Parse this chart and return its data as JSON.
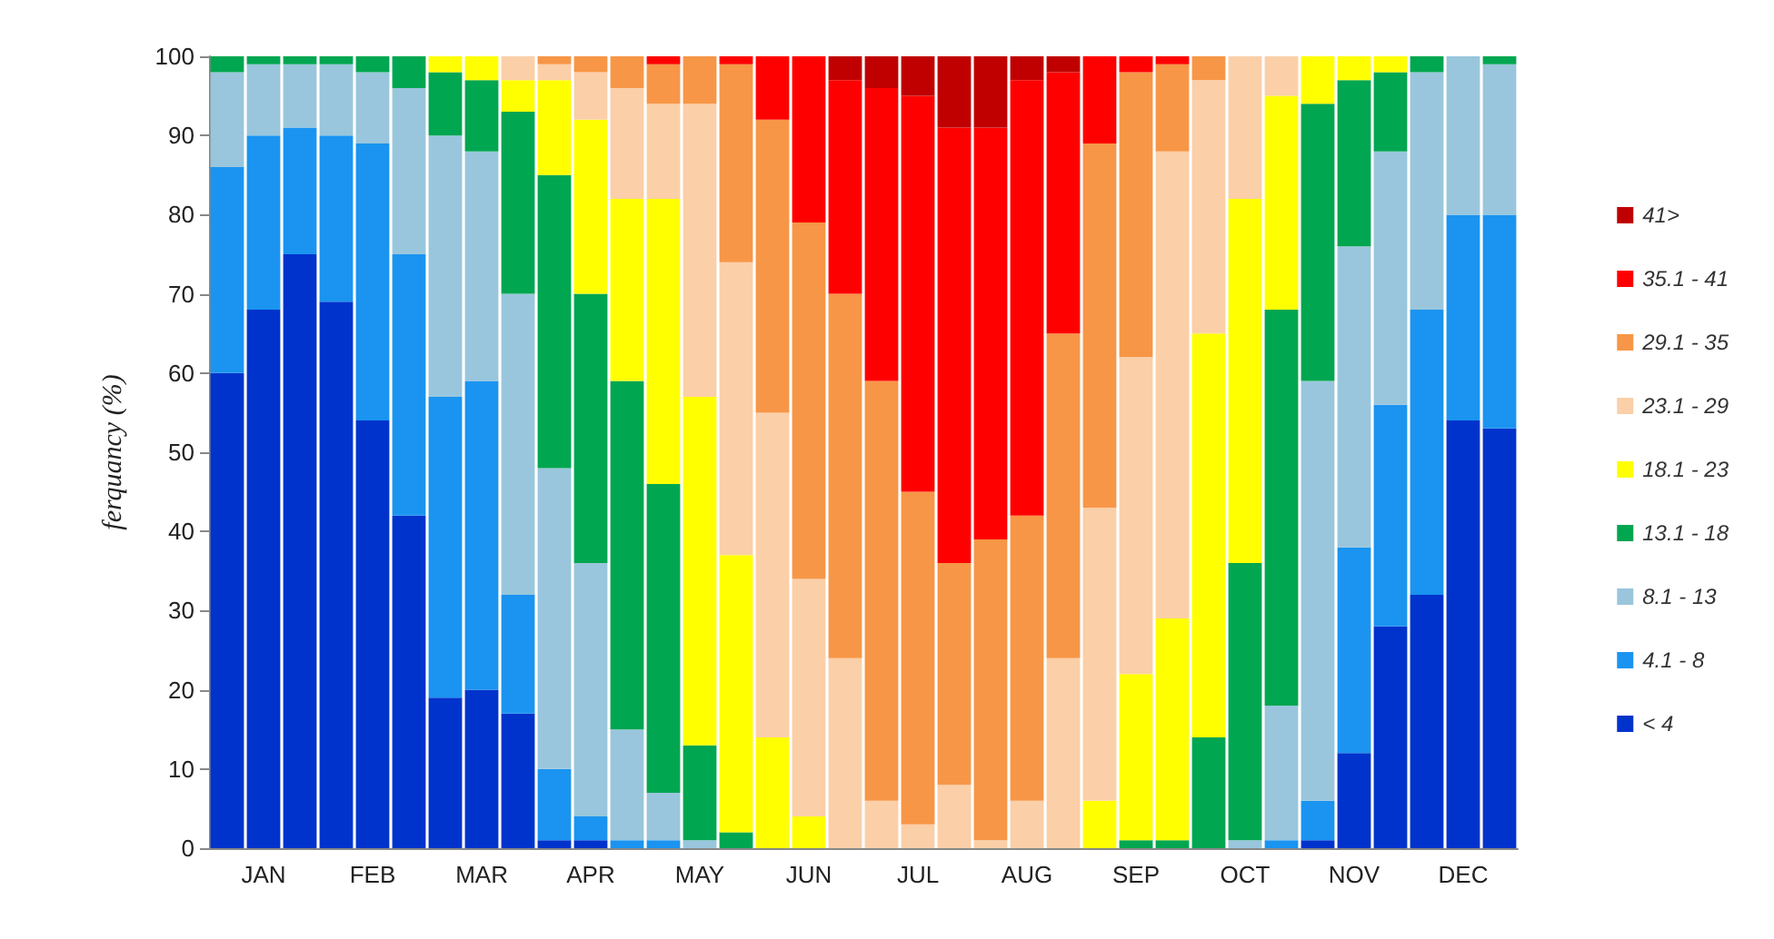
{
  "chart_data": {
    "type": "bar",
    "stacked": true,
    "ylabel": "ferquancy (%)",
    "categories": [
      null,
      "JAN",
      null,
      null,
      "FEB",
      null,
      null,
      "MAR",
      null,
      null,
      "APR",
      null,
      null,
      "MAY",
      null,
      null,
      "JUN",
      null,
      null,
      "JUL",
      null,
      null,
      "AUG",
      null,
      null,
      "SEP",
      null,
      null,
      "OCT",
      null,
      null,
      "NOV",
      null,
      null,
      "DEC",
      null
    ],
    "ylim": [
      0,
      100
    ],
    "yticks": [
      0,
      10,
      20,
      30,
      40,
      50,
      60,
      70,
      80,
      90,
      100
    ],
    "grid": false,
    "legend": "right",
    "series": [
      {
        "name": "< 4",
        "color": "#0033cc",
        "values": [
          60,
          68,
          75,
          69,
          54,
          42,
          19,
          20,
          17,
          1,
          1,
          0,
          0,
          0,
          0,
          0,
          0,
          0,
          0,
          0,
          0,
          0,
          0,
          0,
          0,
          0,
          0,
          0,
          0,
          0,
          1,
          12,
          28,
          32,
          54,
          53
        ]
      },
      {
        "name": "4.1 - 8",
        "color": "#1a94f0",
        "values": [
          26,
          22,
          16,
          21,
          35,
          33,
          38,
          39,
          15,
          9,
          3,
          1,
          1,
          0,
          0,
          0,
          0,
          0,
          0,
          0,
          0,
          0,
          0,
          0,
          0,
          0,
          0,
          0,
          0,
          1,
          5,
          26,
          28,
          36,
          26,
          27
        ]
      },
      {
        "name": "8.1 - 13",
        "color": "#99c6dc",
        "values": [
          12,
          9,
          8,
          9,
          9,
          21,
          33,
          29,
          38,
          38,
          32,
          14,
          6,
          1,
          0,
          0,
          0,
          0,
          0,
          0,
          0,
          0,
          0,
          0,
          0,
          0,
          0,
          0,
          1,
          17,
          53,
          38,
          32,
          30,
          20,
          19
        ]
      },
      {
        "name": "13.1 - 18",
        "color": "#00a650",
        "values": [
          2,
          1,
          1,
          1,
          2,
          4,
          8,
          9,
          23,
          37,
          34,
          44,
          39,
          12,
          2,
          0,
          0,
          0,
          0,
          0,
          0,
          0,
          0,
          0,
          0,
          1,
          1,
          14,
          35,
          50,
          35,
          21,
          10,
          2,
          0,
          1
        ]
      },
      {
        "name": "18.1 - 23",
        "color": "#ffff00",
        "values": [
          0,
          0,
          0,
          0,
          0,
          0,
          2,
          3,
          4,
          12,
          22,
          23,
          36,
          44,
          35,
          14,
          4,
          0,
          0,
          0,
          0,
          0,
          0,
          0,
          6,
          21,
          28,
          51,
          46,
          27,
          6,
          3,
          2,
          0,
          0,
          0
        ]
      },
      {
        "name": "23.1 - 29",
        "color": "#fbcfa8",
        "values": [
          0,
          0,
          0,
          0,
          0,
          0,
          0,
          0,
          3,
          2,
          6,
          14,
          12,
          37,
          37,
          41,
          30,
          24,
          6,
          3,
          8,
          1,
          6,
          24,
          37,
          40,
          59,
          32,
          18,
          5,
          0,
          0,
          0,
          0,
          0,
          0
        ]
      },
      {
        "name": "29.1 - 35",
        "color": "#f79646",
        "values": [
          0,
          0,
          0,
          0,
          0,
          0,
          0,
          0,
          0,
          1,
          2,
          4,
          5,
          6,
          25,
          37,
          45,
          46,
          53,
          42,
          28,
          38,
          36,
          41,
          46,
          36,
          11,
          3,
          0,
          0,
          0,
          0,
          0,
          0,
          0,
          0
        ]
      },
      {
        "name": "35.1 - 41",
        "color": "#ff0000",
        "values": [
          0,
          0,
          0,
          0,
          0,
          0,
          0,
          0,
          0,
          0,
          0,
          0,
          1,
          0,
          1,
          8,
          21,
          27,
          37,
          50,
          55,
          52,
          55,
          33,
          11,
          2,
          1,
          0,
          0,
          0,
          0,
          0,
          0,
          0,
          0,
          0
        ]
      },
      {
        "name": "41>",
        "color": "#c00000",
        "values": [
          0,
          0,
          0,
          0,
          0,
          0,
          0,
          0,
          0,
          0,
          0,
          0,
          0,
          0,
          0,
          0,
          0,
          3,
          4,
          5,
          9,
          9,
          3,
          2,
          0,
          0,
          0,
          0,
          0,
          0,
          0,
          0,
          0,
          0,
          0,
          0
        ]
      }
    ]
  }
}
